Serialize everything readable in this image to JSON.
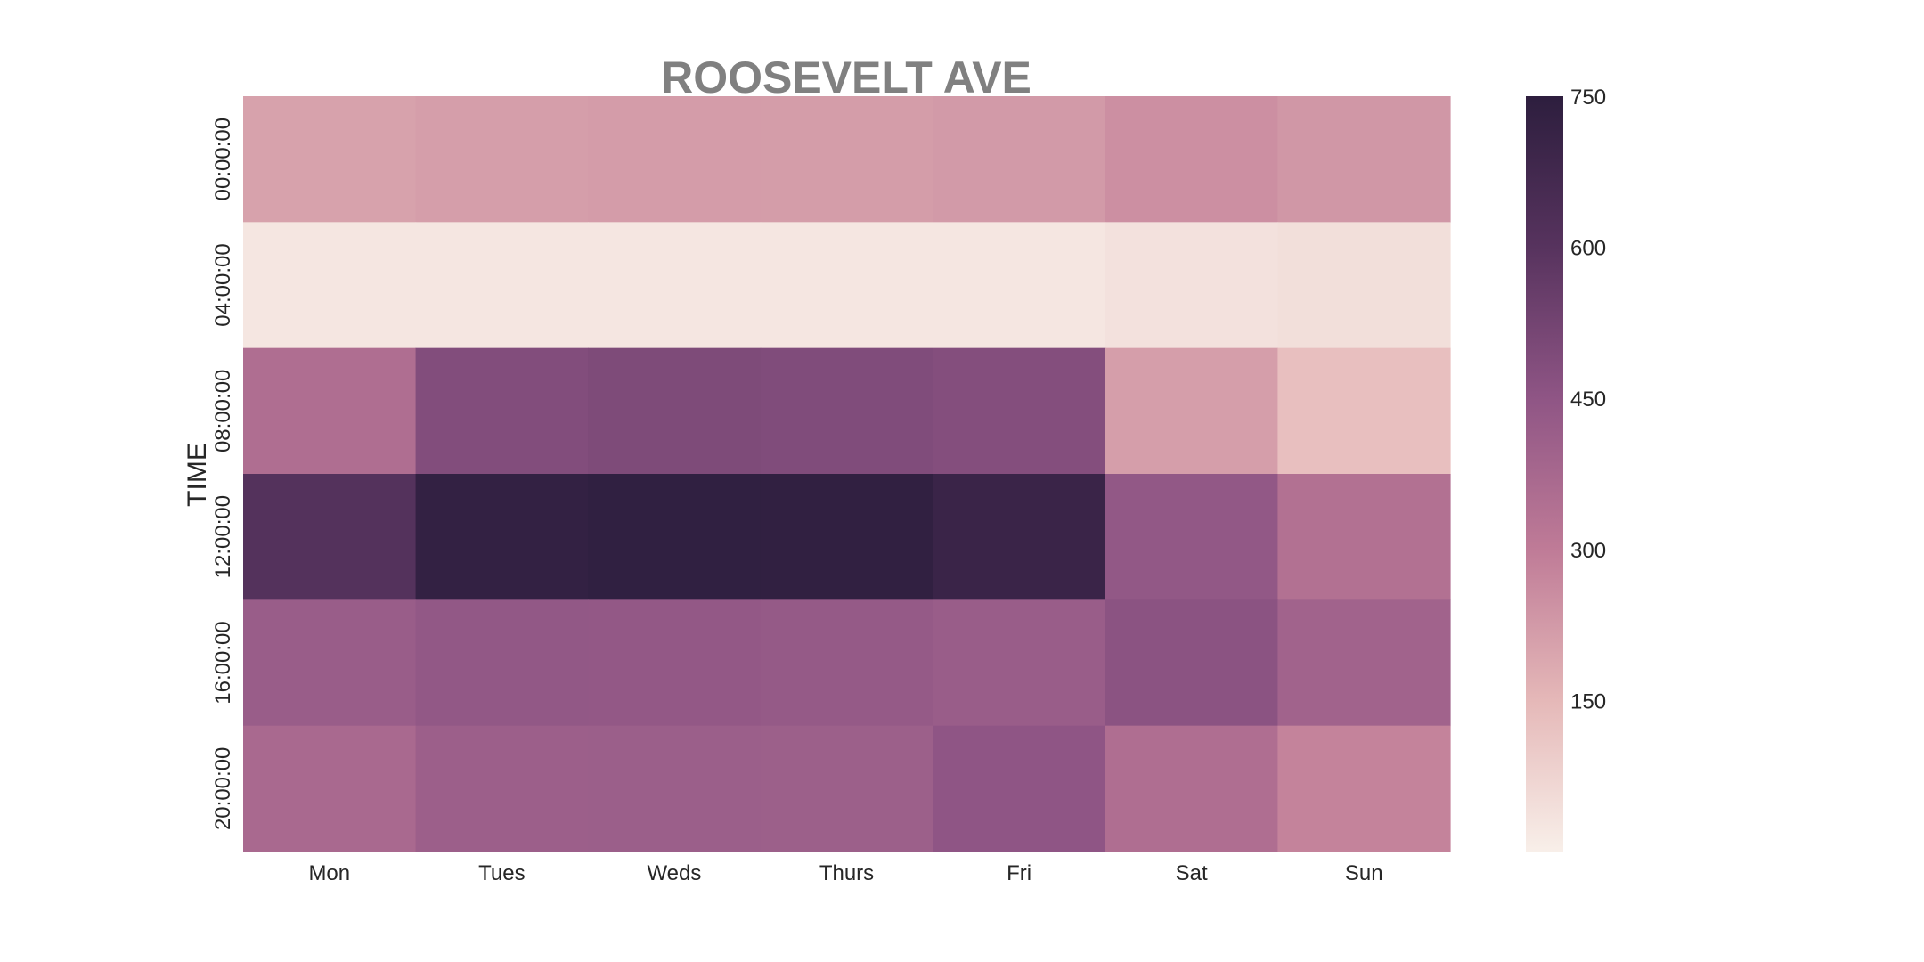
{
  "chart_data": {
    "type": "heatmap",
    "title": "ROOSEVELT AVE",
    "xlabel": "",
    "ylabel": "TIME",
    "x_categories": [
      "Mon",
      "Tues",
      "Weds",
      "Thurs",
      "Fri",
      "Sat",
      "Sun"
    ],
    "y_categories": [
      "00:00:00",
      "04:00:00",
      "08:00:00",
      "12:00:00",
      "16:00:00",
      "20:00:00"
    ],
    "values": [
      [
        205,
        215,
        218,
        217,
        225,
        250,
        232
      ],
      [
        25,
        24,
        24,
        25,
        25,
        38,
        45
      ],
      [
        350,
        485,
        495,
        490,
        480,
        215,
        130
      ],
      [
        610,
        728,
        738,
        735,
        705,
        440,
        340
      ],
      [
        420,
        440,
        438,
        432,
        418,
        460,
        395
      ],
      [
        370,
        410,
        412,
        408,
        450,
        350,
        280
      ]
    ],
    "colorbar": {
      "ticks": [
        150,
        300,
        450,
        600,
        750
      ],
      "range": [
        0,
        750
      ],
      "cmap": "cubehelix light (start .5, rot -.75)",
      "colors": [
        "#f8efe9",
        "#e5b8b8",
        "#bf7b97",
        "#8f5585",
        "#57335e",
        "#2d1e3e"
      ]
    },
    "grid": false,
    "legend": "colorbar-right"
  }
}
